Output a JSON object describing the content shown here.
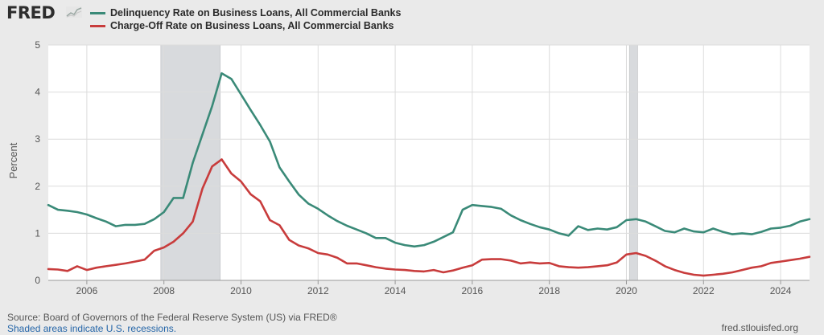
{
  "header": {
    "logo_text": "FRED",
    "logo_icon": "line-chart-icon"
  },
  "colors": {
    "delinquency": "#3a8a78",
    "chargeoff": "#c83c3c",
    "recession": "#d8dadd",
    "grid": "#dcdcdc",
    "plot_bg": "#ffffff",
    "page_bg": "#eaeaea"
  },
  "chart_data": {
    "type": "line",
    "title": "",
    "xlabel": "",
    "ylabel": "Percent",
    "ylim": [
      0,
      5
    ],
    "xlim": [
      2005.0,
      2024.75
    ],
    "yticks": [
      0,
      1,
      2,
      3,
      4,
      5
    ],
    "xticks": [
      2006,
      2008,
      2010,
      2012,
      2014,
      2016,
      2018,
      2020,
      2022,
      2024
    ],
    "grid": true,
    "legend": "top-left",
    "recessions": [
      [
        2007.92,
        2009.46
      ],
      [
        2020.08,
        2020.29
      ]
    ],
    "series": [
      {
        "name": "Delinquency Rate on Business Loans, All Commercial Banks",
        "color": "#3a8a78",
        "x": [
          2005.0,
          2005.25,
          2005.5,
          2005.75,
          2006.0,
          2006.25,
          2006.5,
          2006.75,
          2007.0,
          2007.25,
          2007.5,
          2007.75,
          2008.0,
          2008.25,
          2008.5,
          2008.75,
          2009.0,
          2009.25,
          2009.5,
          2009.75,
          2010.0,
          2010.25,
          2010.5,
          2010.75,
          2011.0,
          2011.25,
          2011.5,
          2011.75,
          2012.0,
          2012.25,
          2012.5,
          2012.75,
          2013.0,
          2013.25,
          2013.5,
          2013.75,
          2014.0,
          2014.25,
          2014.5,
          2014.75,
          2015.0,
          2015.25,
          2015.5,
          2015.75,
          2016.0,
          2016.25,
          2016.5,
          2016.75,
          2017.0,
          2017.25,
          2017.5,
          2017.75,
          2018.0,
          2018.25,
          2018.5,
          2018.75,
          2019.0,
          2019.25,
          2019.5,
          2019.75,
          2020.0,
          2020.25,
          2020.5,
          2020.75,
          2021.0,
          2021.25,
          2021.5,
          2021.75,
          2022.0,
          2022.25,
          2022.5,
          2022.75,
          2023.0,
          2023.25,
          2023.5,
          2023.75,
          2024.0,
          2024.25,
          2024.5,
          2024.75
        ],
        "values": [
          1.6,
          1.5,
          1.48,
          1.45,
          1.4,
          1.32,
          1.25,
          1.15,
          1.18,
          1.18,
          1.2,
          1.3,
          1.45,
          1.75,
          1.75,
          2.5,
          3.1,
          3.7,
          4.4,
          4.28,
          3.95,
          3.62,
          3.3,
          2.95,
          2.4,
          2.1,
          1.82,
          1.63,
          1.52,
          1.38,
          1.26,
          1.16,
          1.08,
          1.0,
          0.9,
          0.9,
          0.8,
          0.75,
          0.72,
          0.75,
          0.82,
          0.92,
          1.02,
          1.5,
          1.6,
          1.58,
          1.56,
          1.52,
          1.38,
          1.28,
          1.2,
          1.13,
          1.08,
          1.0,
          0.95,
          1.15,
          1.07,
          1.1,
          1.08,
          1.13,
          1.28,
          1.3,
          1.25,
          1.15,
          1.05,
          1.02,
          1.1,
          1.04,
          1.02,
          1.1,
          1.03,
          0.98,
          1.0,
          0.98,
          1.03,
          1.1,
          1.12,
          1.16,
          1.25,
          1.3
        ]
      },
      {
        "name": "Charge-Off Rate on Business Loans, All Commercial Banks",
        "color": "#c83c3c",
        "x": [
          2005.0,
          2005.25,
          2005.5,
          2005.75,
          2006.0,
          2006.25,
          2006.5,
          2006.75,
          2007.0,
          2007.25,
          2007.5,
          2007.75,
          2008.0,
          2008.25,
          2008.5,
          2008.75,
          2009.0,
          2009.25,
          2009.5,
          2009.75,
          2010.0,
          2010.25,
          2010.5,
          2010.75,
          2011.0,
          2011.25,
          2011.5,
          2011.75,
          2012.0,
          2012.25,
          2012.5,
          2012.75,
          2013.0,
          2013.25,
          2013.5,
          2013.75,
          2014.0,
          2014.25,
          2014.5,
          2014.75,
          2015.0,
          2015.25,
          2015.5,
          2015.75,
          2016.0,
          2016.25,
          2016.5,
          2016.75,
          2017.0,
          2017.25,
          2017.5,
          2017.75,
          2018.0,
          2018.25,
          2018.5,
          2018.75,
          2019.0,
          2019.25,
          2019.5,
          2019.75,
          2020.0,
          2020.25,
          2020.5,
          2020.75,
          2021.0,
          2021.25,
          2021.5,
          2021.75,
          2022.0,
          2022.25,
          2022.5,
          2022.75,
          2023.0,
          2023.25,
          2023.5,
          2023.75,
          2024.0,
          2024.25,
          2024.5,
          2024.75
        ],
        "values": [
          0.24,
          0.23,
          0.2,
          0.3,
          0.22,
          0.27,
          0.3,
          0.33,
          0.36,
          0.4,
          0.44,
          0.63,
          0.7,
          0.82,
          1.0,
          1.25,
          1.95,
          2.42,
          2.57,
          2.27,
          2.1,
          1.83,
          1.68,
          1.28,
          1.17,
          0.86,
          0.74,
          0.68,
          0.58,
          0.55,
          0.48,
          0.36,
          0.36,
          0.32,
          0.28,
          0.25,
          0.23,
          0.22,
          0.2,
          0.19,
          0.22,
          0.17,
          0.21,
          0.27,
          0.32,
          0.44,
          0.45,
          0.45,
          0.42,
          0.36,
          0.38,
          0.36,
          0.37,
          0.3,
          0.28,
          0.27,
          0.28,
          0.3,
          0.32,
          0.38,
          0.55,
          0.58,
          0.52,
          0.42,
          0.3,
          0.22,
          0.16,
          0.12,
          0.1,
          0.12,
          0.14,
          0.17,
          0.22,
          0.27,
          0.3,
          0.37,
          0.4,
          0.43,
          0.46,
          0.5
        ]
      }
    ]
  },
  "footer": {
    "source": "Source: Board of Governors of the Federal Reserve System (US) via FRED®",
    "note": "Shaded areas indicate U.S. recessions.",
    "site": "fred.stlouisfed.org"
  }
}
